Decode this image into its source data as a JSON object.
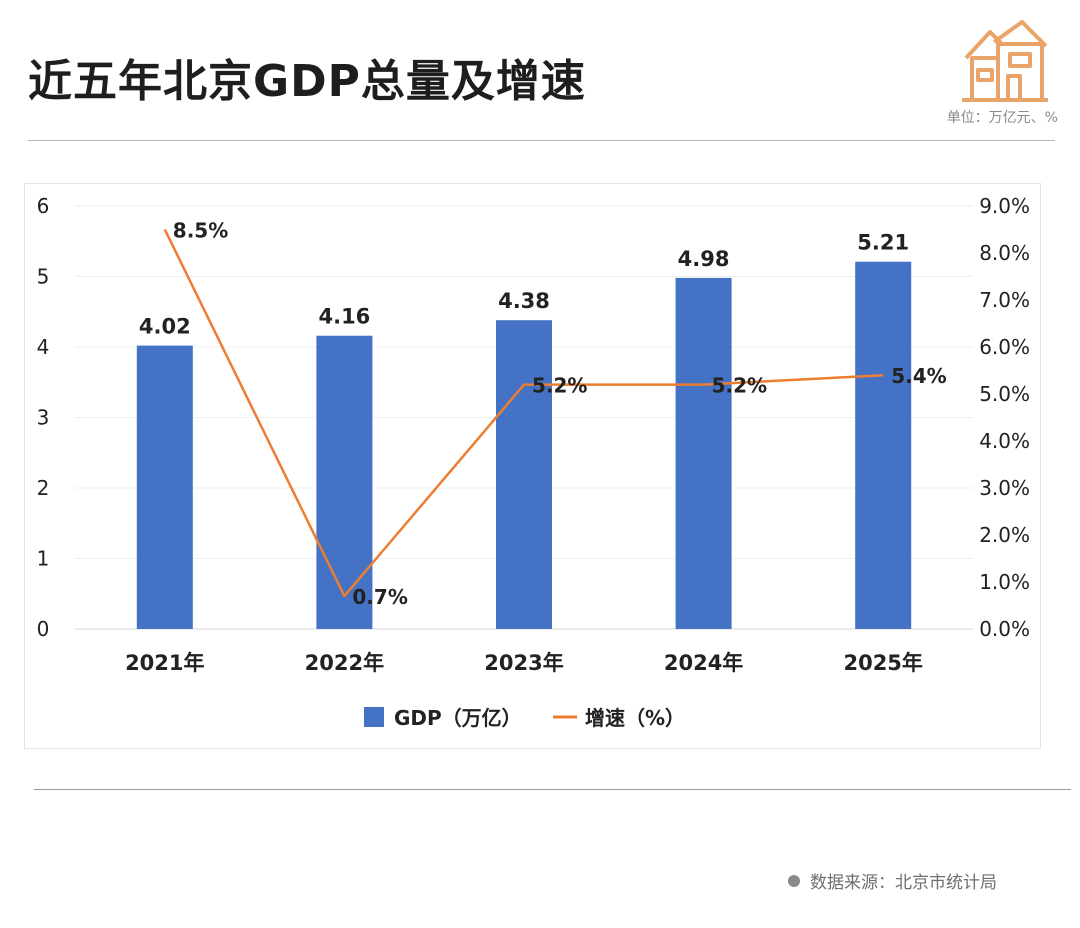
{
  "header": {
    "title": "近五年北京GDP总量及增速",
    "unit": "单位：万亿元、%"
  },
  "footer": {
    "source": "数据来源：北京市统计局"
  },
  "colors": {
    "bar": "#4472C4",
    "line": "#ED7D31",
    "logo": "#EAA46A"
  },
  "chart_data": {
    "type": "bar",
    "categories": [
      "2021年",
      "2022年",
      "2023年",
      "2024年",
      "2025年"
    ],
    "series": [
      {
        "name": "GDP（万亿）",
        "type": "bar",
        "axis": "left",
        "values": [
          4.02,
          4.16,
          4.38,
          4.98,
          5.21
        ],
        "labels": [
          "4.02",
          "4.16",
          "4.38",
          "4.98",
          "5.21"
        ]
      },
      {
        "name": "增速（%）",
        "type": "line",
        "axis": "right",
        "values": [
          8.5,
          0.7,
          5.2,
          5.2,
          5.4
        ],
        "labels": [
          "8.5%",
          "0.7%",
          "5.2%",
          "5.2%",
          "5.4%"
        ]
      }
    ],
    "y_left": {
      "ylim": [
        0,
        6
      ],
      "ticks": [
        "0",
        "1",
        "2",
        "3",
        "4",
        "5",
        "6"
      ]
    },
    "y_right": {
      "ylim": [
        0,
        9
      ],
      "ticks": [
        "0.0%",
        "1.0%",
        "2.0%",
        "3.0%",
        "4.0%",
        "5.0%",
        "6.0%",
        "7.0%",
        "8.0%",
        "9.0%"
      ]
    },
    "legend_position": "bottom",
    "grid": true
  }
}
